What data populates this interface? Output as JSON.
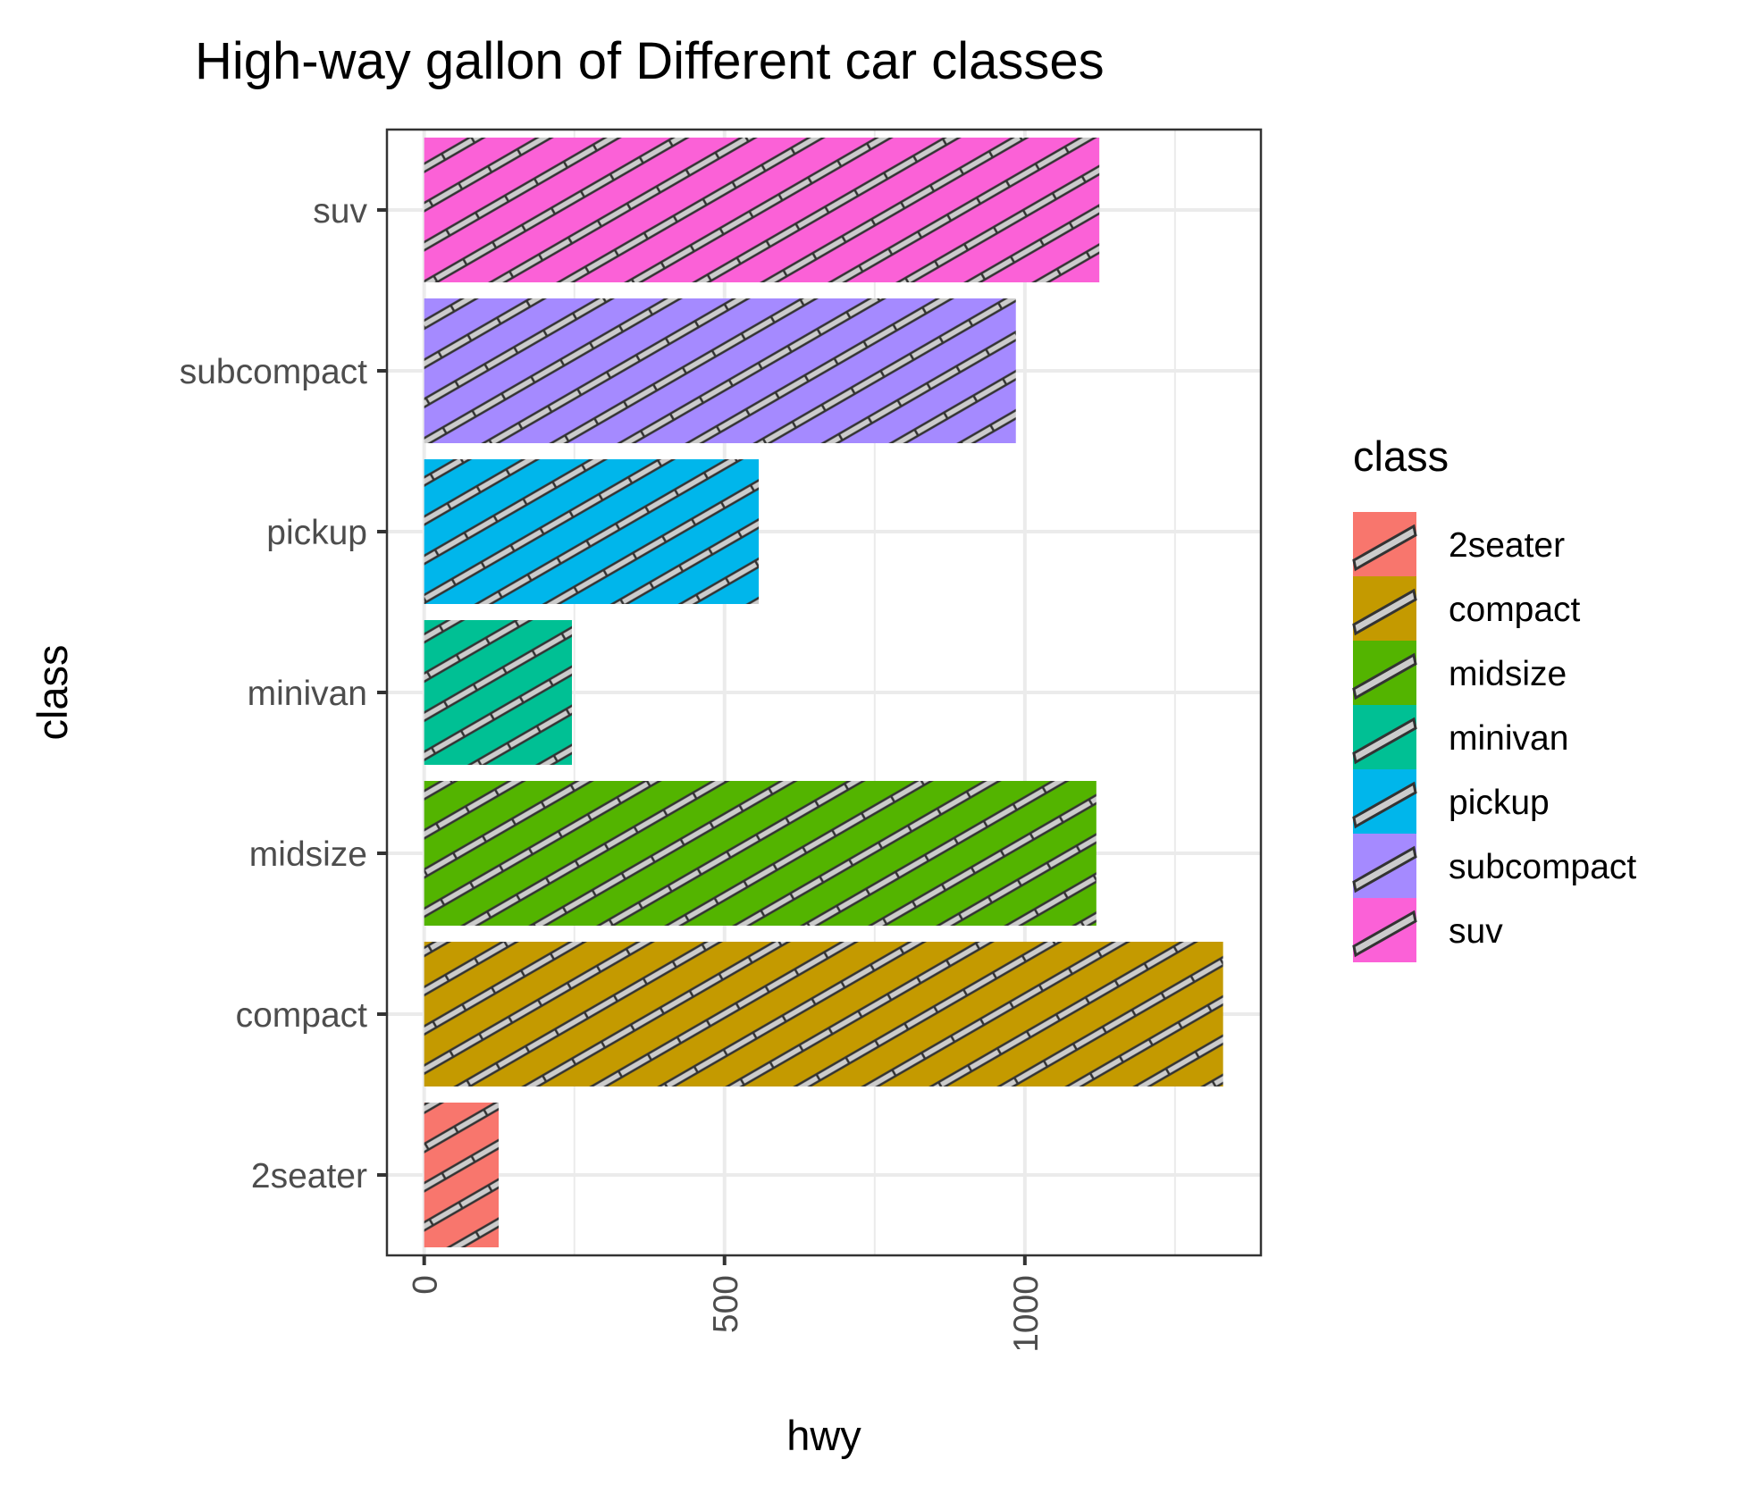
{
  "chart_data": {
    "type": "bar",
    "orientation": "horizontal",
    "title": "High-way gallon of Different car classes",
    "xlabel": "hwy",
    "ylabel": "class",
    "categories": [
      "2seater",
      "compact",
      "midsize",
      "minivan",
      "pickup",
      "subcompact",
      "suv"
    ],
    "values": [
      124,
      1330,
      1119,
      246,
      557,
      985,
      1124
    ],
    "colors": [
      "#F8766D",
      "#C49A00",
      "#53B400",
      "#00C094",
      "#00B6EB",
      "#A58AFF",
      "#FB61D7"
    ],
    "xlim": [
      -62,
      1393
    ],
    "x_ticks": [
      "0",
      "500",
      "1000"
    ],
    "x_tick_values": [
      0,
      500,
      1000
    ],
    "x_tick_label_rotation": "vertical",
    "pattern": "stripe",
    "pattern_fill": "#cccccc",
    "pattern_outline": "#333333",
    "grid": true,
    "legend": {
      "title": "class",
      "placement": "right",
      "entries": [
        "2seater",
        "compact",
        "midsize",
        "minivan",
        "pickup",
        "subcompact",
        "suv"
      ]
    }
  }
}
